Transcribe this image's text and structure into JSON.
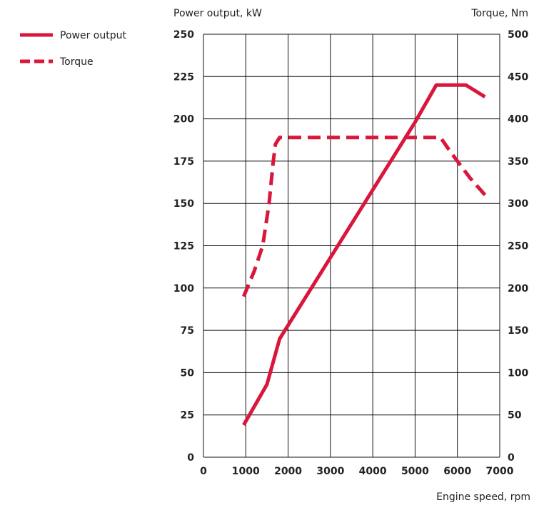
{
  "chart_data": {
    "type": "line",
    "xlabel": "Engine speed, rpm",
    "ylabel_left": "Power output, kW",
    "ylabel_right": "Torque, Nm",
    "xlim": [
      0,
      7000
    ],
    "ylim_left": [
      0,
      250
    ],
    "ylim_right": [
      0,
      500
    ],
    "x_ticks": [
      0,
      1000,
      2000,
      3000,
      4000,
      5000,
      6000,
      7000
    ],
    "y_left_ticks": [
      0,
      25,
      50,
      75,
      100,
      125,
      150,
      175,
      200,
      225,
      250
    ],
    "y_right_ticks": [
      0,
      50,
      100,
      150,
      200,
      250,
      300,
      350,
      400,
      450,
      500
    ],
    "grid": true,
    "legend_position": "top-left",
    "color": "#d9163c",
    "series": [
      {
        "name": "Power output",
        "axis": "left",
        "style": "solid",
        "x": [
          950,
          1500,
          1800,
          5000,
          5500,
          6200,
          6650
        ],
        "y": [
          19,
          43,
          70,
          198,
          220,
          220,
          213
        ]
      },
      {
        "name": "Torque",
        "axis": "right",
        "style": "dashed",
        "x": [
          950,
          1200,
          1400,
          1550,
          1650,
          1700,
          1800,
          5600,
          5850,
          6300,
          6650
        ],
        "y": [
          190,
          220,
          250,
          300,
          350,
          370,
          378,
          378,
          360,
          330,
          310
        ]
      }
    ]
  }
}
